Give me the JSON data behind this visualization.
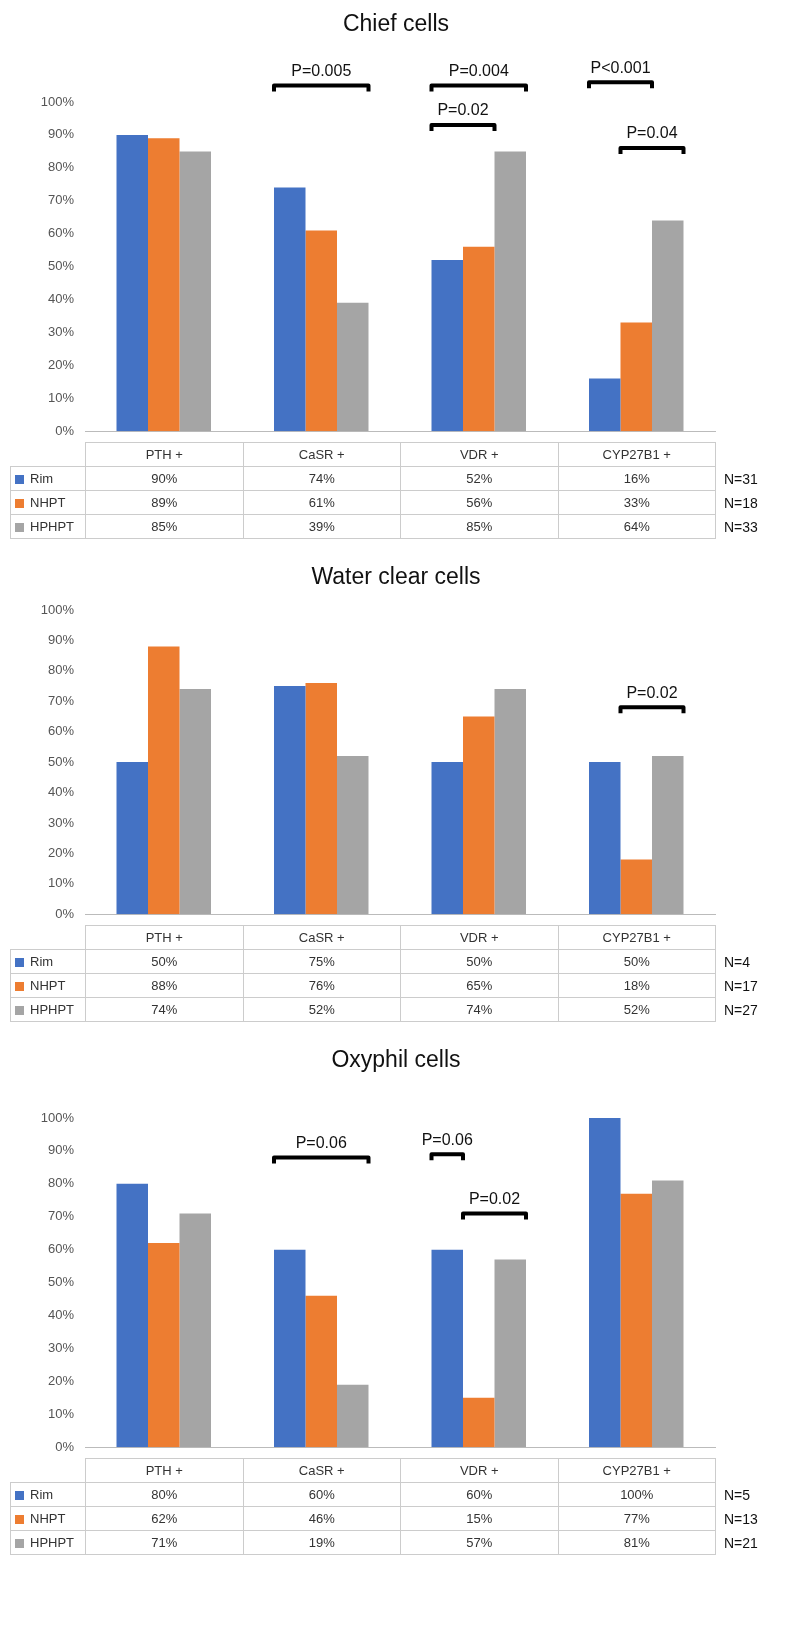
{
  "chart_data": [
    {
      "type": "bar",
      "title": "Chief cells",
      "categories": [
        "PTH +",
        "CaSR +",
        "VDR +",
        "CYP27B1 +"
      ],
      "series": [
        {
          "name": "Rim",
          "color": "#4472c4",
          "values": [
            90,
            74,
            52,
            16
          ],
          "value_labels": [
            "90%",
            "74%",
            "52%",
            "16%"
          ]
        },
        {
          "name": "NHPT",
          "color": "#ed7d31",
          "values": [
            89,
            61,
            56,
            33
          ],
          "value_labels": [
            "89%",
            "61%",
            "56%",
            "33%"
          ]
        },
        {
          "name": "HPHPT",
          "color": "#a5a5a5",
          "values": [
            85,
            39,
            85,
            64
          ],
          "value_labels": [
            "85%",
            "39%",
            "85%",
            "64%"
          ]
        }
      ],
      "ylim": [
        0,
        100
      ],
      "yticks": [
        {
          "value": 0,
          "label": "0%"
        },
        {
          "value": 10,
          "label": "10%"
        },
        {
          "value": 20,
          "label": "20%"
        },
        {
          "value": 30,
          "label": "30%"
        },
        {
          "value": 40,
          "label": "40%"
        },
        {
          "value": 50,
          "label": "50%"
        },
        {
          "value": 60,
          "label": "60%"
        },
        {
          "value": 70,
          "label": "70%"
        },
        {
          "value": 80,
          "label": "80%"
        },
        {
          "value": 90,
          "label": "90%"
        },
        {
          "value": 100,
          "label": "100%"
        }
      ],
      "tick_labels": "y",
      "legend": "bottom",
      "annotations": [
        "P=0.005",
        "P=0.004",
        "P=0.02",
        "P<0.001",
        "P=0.04",
        "N=31",
        "N=18",
        "N=33"
      ]
    },
    {
      "type": "bar",
      "title": "Water clear cells",
      "categories": [
        "PTH +",
        "CaSR +",
        "VDR +",
        "CYP27B1 +"
      ],
      "series": [
        {
          "name": "Rim",
          "color": "#4472c4",
          "values": [
            50,
            75,
            50,
            50
          ],
          "value_labels": [
            "50%",
            "75%",
            "50%",
            "50%"
          ]
        },
        {
          "name": "NHPT",
          "color": "#ed7d31",
          "values": [
            88,
            76,
            65,
            18
          ],
          "value_labels": [
            "88%",
            "76%",
            "65%",
            "18%"
          ]
        },
        {
          "name": "HPHPT",
          "color": "#a5a5a5",
          "values": [
            74,
            52,
            74,
            52
          ],
          "value_labels": [
            "74%",
            "52%",
            "74%",
            "52%"
          ]
        }
      ],
      "ylim": [
        0,
        100
      ],
      "yticks": [
        {
          "value": 0,
          "label": "0%"
        },
        {
          "value": 10,
          "label": "10%"
        },
        {
          "value": 20,
          "label": "20%"
        },
        {
          "value": 30,
          "label": "30%"
        },
        {
          "value": 40,
          "label": "40%"
        },
        {
          "value": 50,
          "label": "50%"
        },
        {
          "value": 60,
          "label": "60%"
        },
        {
          "value": 70,
          "label": "70%"
        },
        {
          "value": 80,
          "label": "80%"
        },
        {
          "value": 90,
          "label": "90%"
        },
        {
          "value": 100,
          "label": "100%"
        }
      ],
      "tick_labels": "y",
      "legend": "bottom",
      "annotations": [
        "P=0.02",
        "N=4",
        "N=17",
        "N=27"
      ]
    },
    {
      "type": "bar",
      "title": "Oxyphil cells",
      "categories": [
        "PTH +",
        "CaSR +",
        "VDR +",
        "CYP27B1 +"
      ],
      "series": [
        {
          "name": "Rim",
          "color": "#4472c4",
          "values": [
            80,
            60,
            60,
            100
          ],
          "value_labels": [
            "80%",
            "60%",
            "60%",
            "100%"
          ]
        },
        {
          "name": "NHPT",
          "color": "#ed7d31",
          "values": [
            62,
            46,
            15,
            77
          ],
          "value_labels": [
            "62%",
            "46%",
            "15%",
            "77%"
          ]
        },
        {
          "name": "HPHPT",
          "color": "#a5a5a5",
          "values": [
            71,
            19,
            57,
            81
          ],
          "value_labels": [
            "71%",
            "19%",
            "57%",
            "81%"
          ]
        }
      ],
      "ylim": [
        0,
        100
      ],
      "yticks": [
        {
          "value": 0,
          "label": "0%"
        },
        {
          "value": 10,
          "label": "10%"
        },
        {
          "value": 20,
          "label": "20%"
        },
        {
          "value": 30,
          "label": "30%"
        },
        {
          "value": 40,
          "label": "40%"
        },
        {
          "value": 50,
          "label": "50%"
        },
        {
          "value": 60,
          "label": "60%"
        },
        {
          "value": 70,
          "label": "70%"
        },
        {
          "value": 80,
          "label": "80%"
        },
        {
          "value": 90,
          "label": "90%"
        },
        {
          "value": 100,
          "label": "100%"
        }
      ],
      "tick_labels": "y",
      "legend": "bottom",
      "annotations": [
        "P=0.06",
        "P=0.06",
        "P=0.02",
        "N=5",
        "N=13",
        "N=21"
      ]
    }
  ]
}
